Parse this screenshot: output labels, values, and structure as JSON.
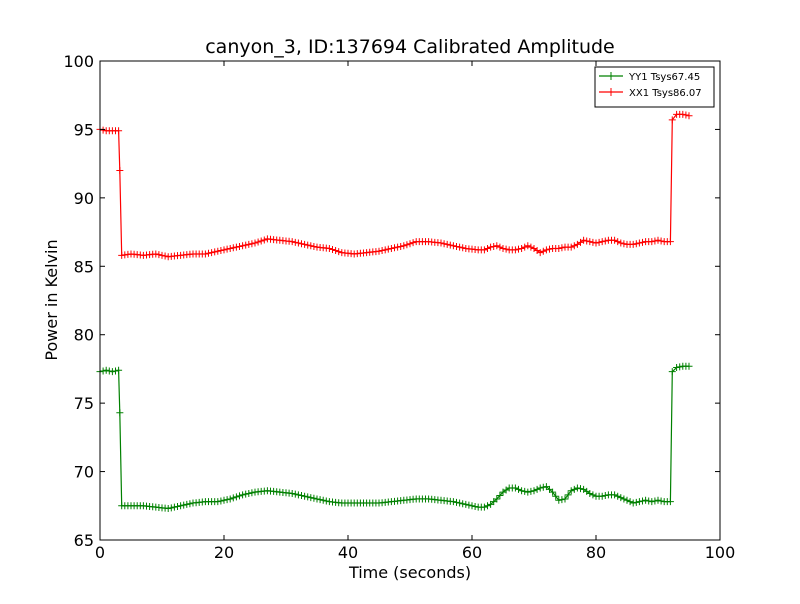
{
  "chart_data": {
    "type": "line",
    "title": "canyon_3, ID:137694 Calibrated Amplitude",
    "xlabel": "Time (seconds)",
    "ylabel": "Power in Kelvin",
    "xlim": [
      0,
      100
    ],
    "ylim": [
      65,
      100
    ],
    "xticks": [
      0,
      20,
      40,
      60,
      80,
      100
    ],
    "yticks": [
      65,
      70,
      75,
      80,
      85,
      90,
      95,
      100
    ],
    "grid": false,
    "legend_position": "top-right",
    "marker": "+",
    "series": [
      {
        "name": "YY1 Tsys67.45",
        "color": "#008000",
        "points": [
          [
            0.0,
            77.3
          ],
          [
            1.0,
            77.4
          ],
          [
            2.0,
            77.3
          ],
          [
            3.0,
            77.4
          ],
          [
            3.2,
            74.3
          ],
          [
            3.5,
            67.5
          ],
          [
            5,
            67.5
          ],
          [
            7,
            67.5
          ],
          [
            9,
            67.4
          ],
          [
            11,
            67.3
          ],
          [
            13,
            67.5
          ],
          [
            15,
            67.7
          ],
          [
            17,
            67.8
          ],
          [
            19,
            67.8
          ],
          [
            21,
            68.0
          ],
          [
            23,
            68.3
          ],
          [
            25,
            68.5
          ],
          [
            27,
            68.6
          ],
          [
            29,
            68.5
          ],
          [
            31,
            68.4
          ],
          [
            33,
            68.2
          ],
          [
            35,
            68.0
          ],
          [
            37,
            67.8
          ],
          [
            39,
            67.7
          ],
          [
            41,
            67.7
          ],
          [
            43,
            67.7
          ],
          [
            45,
            67.7
          ],
          [
            47,
            67.8
          ],
          [
            49,
            67.9
          ],
          [
            51,
            68.0
          ],
          [
            53,
            68.0
          ],
          [
            55,
            67.9
          ],
          [
            57,
            67.8
          ],
          [
            59,
            67.6
          ],
          [
            61,
            67.4
          ],
          [
            62,
            67.4
          ],
          [
            63,
            67.6
          ],
          [
            64,
            68.0
          ],
          [
            65,
            68.5
          ],
          [
            66,
            68.8
          ],
          [
            67,
            68.8
          ],
          [
            68,
            68.6
          ],
          [
            69,
            68.5
          ],
          [
            70,
            68.6
          ],
          [
            71,
            68.8
          ],
          [
            72,
            68.9
          ],
          [
            73,
            68.5
          ],
          [
            74,
            67.9
          ],
          [
            75,
            68.0
          ],
          [
            76,
            68.6
          ],
          [
            77,
            68.8
          ],
          [
            78,
            68.7
          ],
          [
            79,
            68.4
          ],
          [
            80,
            68.2
          ],
          [
            81,
            68.2
          ],
          [
            82,
            68.3
          ],
          [
            83,
            68.3
          ],
          [
            84,
            68.1
          ],
          [
            85,
            67.9
          ],
          [
            86,
            67.7
          ],
          [
            87,
            67.8
          ],
          [
            88,
            67.9
          ],
          [
            89,
            67.8
          ],
          [
            90,
            67.9
          ],
          [
            91,
            67.8
          ],
          [
            92,
            67.8
          ],
          [
            92.3,
            77.3
          ],
          [
            93,
            77.6
          ],
          [
            94,
            77.7
          ],
          [
            95,
            77.7
          ]
        ]
      },
      {
        "name": "XX1 Tsys86.07",
        "color": "#ff0000",
        "points": [
          [
            0.0,
            95.0
          ],
          [
            1.0,
            94.9
          ],
          [
            2.0,
            94.9
          ],
          [
            3.0,
            94.9
          ],
          [
            3.2,
            92.0
          ],
          [
            3.5,
            85.8
          ],
          [
            5,
            85.9
          ],
          [
            7,
            85.8
          ],
          [
            9,
            85.9
          ],
          [
            11,
            85.7
          ],
          [
            13,
            85.8
          ],
          [
            15,
            85.9
          ],
          [
            17,
            85.9
          ],
          [
            19,
            86.1
          ],
          [
            21,
            86.3
          ],
          [
            23,
            86.5
          ],
          [
            25,
            86.7
          ],
          [
            27,
            87.0
          ],
          [
            29,
            86.9
          ],
          [
            31,
            86.8
          ],
          [
            33,
            86.6
          ],
          [
            35,
            86.4
          ],
          [
            37,
            86.3
          ],
          [
            39,
            86.0
          ],
          [
            41,
            85.9
          ],
          [
            43,
            86.0
          ],
          [
            45,
            86.1
          ],
          [
            47,
            86.3
          ],
          [
            49,
            86.5
          ],
          [
            51,
            86.8
          ],
          [
            53,
            86.8
          ],
          [
            55,
            86.7
          ],
          [
            57,
            86.5
          ],
          [
            59,
            86.3
          ],
          [
            61,
            86.2
          ],
          [
            62,
            86.2
          ],
          [
            63,
            86.4
          ],
          [
            64,
            86.5
          ],
          [
            65,
            86.3
          ],
          [
            66,
            86.2
          ],
          [
            67,
            86.2
          ],
          [
            68,
            86.3
          ],
          [
            69,
            86.5
          ],
          [
            70,
            86.3
          ],
          [
            71,
            86.0
          ],
          [
            72,
            86.2
          ],
          [
            73,
            86.3
          ],
          [
            74,
            86.3
          ],
          [
            75,
            86.4
          ],
          [
            76,
            86.4
          ],
          [
            77,
            86.6
          ],
          [
            78,
            86.9
          ],
          [
            79,
            86.8
          ],
          [
            80,
            86.7
          ],
          [
            81,
            86.8
          ],
          [
            82,
            86.9
          ],
          [
            83,
            86.9
          ],
          [
            84,
            86.7
          ],
          [
            85,
            86.6
          ],
          [
            86,
            86.6
          ],
          [
            87,
            86.7
          ],
          [
            88,
            86.8
          ],
          [
            89,
            86.8
          ],
          [
            90,
            86.9
          ],
          [
            91,
            86.8
          ],
          [
            92,
            86.8
          ],
          [
            92.3,
            95.7
          ],
          [
            93,
            96.1
          ],
          [
            94,
            96.1
          ],
          [
            95,
            96.0
          ]
        ]
      }
    ]
  }
}
